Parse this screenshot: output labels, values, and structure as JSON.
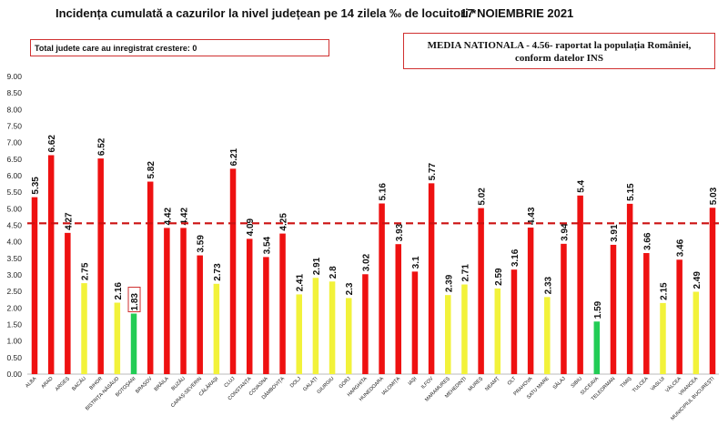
{
  "header": {
    "title": "Incidența cumulată a cazurilor la nivel județean pe 14 zilela ‰ de locuitori *",
    "date": "17 NOIEMBRIE 2021"
  },
  "boxes": {
    "increase_note": "Total judete care au inregistrat crestere: 0",
    "national_line1": "MEDIA NATIONALA  - 4.56-  raportat la populația României,",
    "national_line2": "conform datelor INS"
  },
  "colors": {
    "red": "#ee1111",
    "yellow": "#f2f23a",
    "green": "#22cc55",
    "reference_line": "#cc1111",
    "box_border": "#d03030"
  },
  "chart_data": {
    "type": "bar",
    "categories": [
      "ALBA",
      "ARAD",
      "ARGEȘ",
      "BACĂU",
      "BIHOR",
      "BISTRIȚA-NĂSĂUD",
      "BOTOȘANI",
      "BRAȘOV",
      "BRĂILA",
      "BUZĂU",
      "CARAȘ-SEVERIN",
      "CĂLĂRAȘI",
      "CLUJ",
      "CONSTANȚA",
      "COVASNA",
      "DÂMBOVIȚA",
      "DOLJ",
      "GALAȚI",
      "GIURGIU",
      "GORJ",
      "HARGHITA",
      "HUNEDOARA",
      "IALOMIȚA",
      "IAȘI",
      "ILFOV",
      "MARAMUREȘ",
      "MEHEDINȚI",
      "MUREȘ",
      "NEAMȚ",
      "OLT",
      "PRAHOVA",
      "SATU MARE",
      "SĂLAJ",
      "SIBIU",
      "SUCEAVA",
      "TELEORMAN",
      "TIMIȘ",
      "TULCEA",
      "VASLUI",
      "VÂLCEA",
      "VRANCEA",
      "MUNICIPIUL BUCUREȘTI"
    ],
    "values": [
      5.35,
      6.62,
      4.27,
      2.75,
      6.52,
      2.16,
      1.83,
      5.82,
      4.42,
      4.42,
      3.59,
      2.73,
      6.21,
      4.09,
      3.54,
      4.25,
      2.41,
      2.91,
      2.8,
      2.3,
      3.02,
      5.16,
      3.93,
      3.1,
      5.77,
      2.39,
      2.71,
      5.02,
      2.59,
      3.16,
      4.43,
      2.33,
      3.94,
      5.4,
      1.59,
      3.91,
      5.15,
      3.66,
      2.15,
      3.46,
      2.49,
      5.03
    ],
    "value_labels": [
      "5.35",
      "6.62",
      "4.27",
      "2.75",
      "6.52",
      "2.16",
      "1.83",
      "5.82",
      "4.42",
      "4.42",
      "3.59",
      "2.73",
      "6.21",
      "4.09",
      "3.54",
      "4.25",
      "2.41",
      "2.91",
      "2.8",
      "2.3",
      "3.02",
      "5.16",
      "3.93",
      "3.1",
      "5.77",
      "2.39",
      "2.71",
      "5.02",
      "2.59",
      "3.16",
      "4.43",
      "2.33",
      "3.94",
      "5.4",
      "1.59",
      "3.91",
      "5.15",
      "3.66",
      "2.15",
      "3.46",
      "2.49",
      "5.03"
    ],
    "bar_colors": [
      "red",
      "red",
      "red",
      "yellow",
      "red",
      "yellow",
      "green",
      "red",
      "red",
      "red",
      "red",
      "yellow",
      "red",
      "red",
      "red",
      "red",
      "yellow",
      "yellow",
      "yellow",
      "yellow",
      "red",
      "red",
      "red",
      "red",
      "red",
      "yellow",
      "yellow",
      "red",
      "yellow",
      "red",
      "red",
      "yellow",
      "red",
      "red",
      "green",
      "red",
      "red",
      "red",
      "yellow",
      "red",
      "yellow",
      "red"
    ],
    "boxed_label_index": 6,
    "reference_line": 4.56,
    "ylim": [
      0,
      9
    ],
    "yticks": [
      "0.00",
      "0.50",
      "1.00",
      "1.50",
      "2.00",
      "2.50",
      "3.00",
      "3.50",
      "4.00",
      "4.50",
      "5.00",
      "5.50",
      "6.00",
      "6.50",
      "7.00",
      "7.50",
      "8.00",
      "8.50",
      "9.00"
    ],
    "grid": false,
    "legend": "none"
  }
}
